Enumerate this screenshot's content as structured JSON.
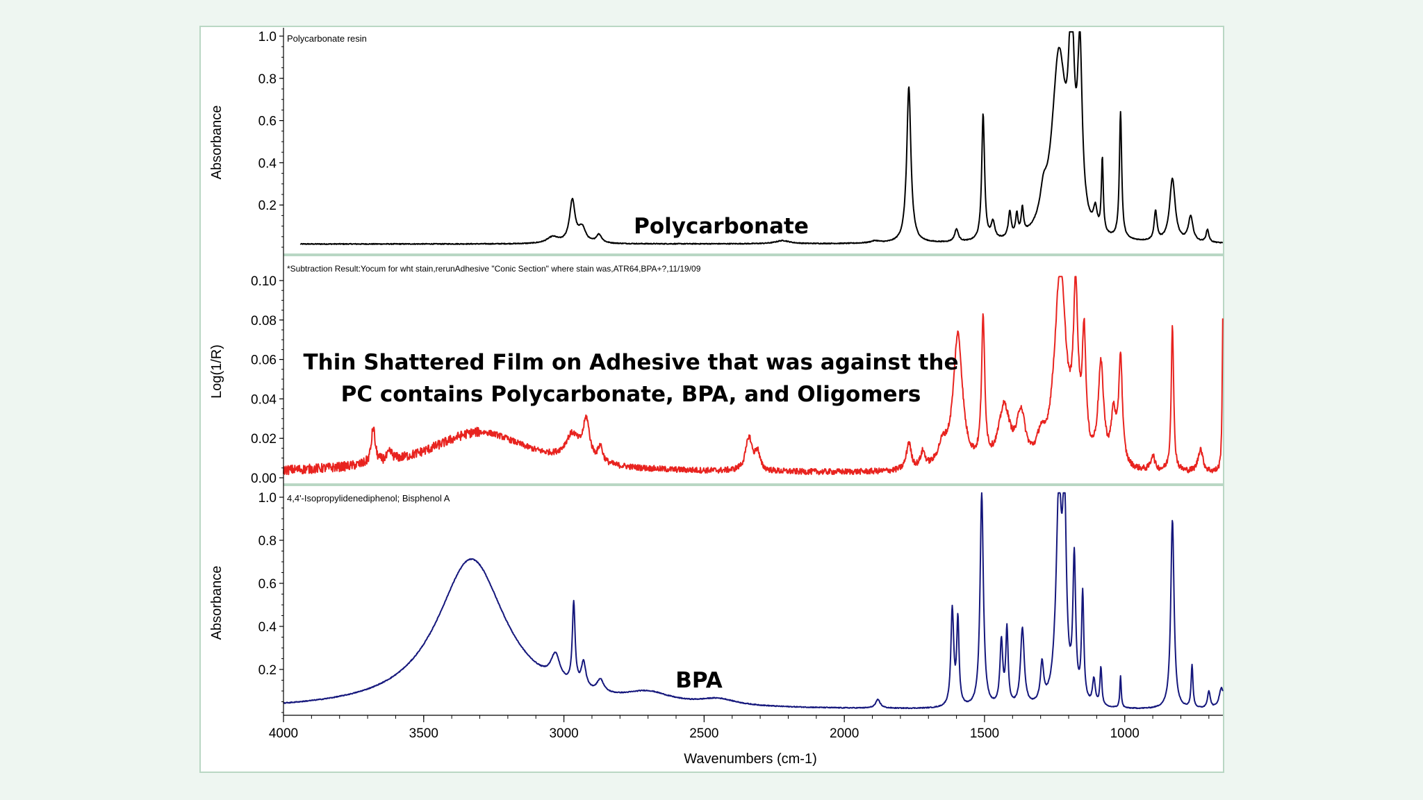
{
  "colors": {
    "background": "#eef6f1",
    "panel": "#ffffff",
    "divider": "#b9d7c4",
    "polycarbonate": "#000000",
    "subtraction": "#e8231f",
    "bpa": "#15177c"
  },
  "x_axis": {
    "label": "Wavenumbers (cm-1)",
    "ticks": [
      "4000",
      "3500",
      "3000",
      "2500",
      "2000",
      "1500",
      "1000"
    ],
    "range": [
      4000,
      650
    ],
    "reversed": true
  },
  "chart_data": [
    {
      "type": "line",
      "panel": "top",
      "title": "Polycarbonate resin",
      "annotation": "Polycarbonate",
      "ylabel": "Absorbance",
      "yticks": [
        "1.0",
        "0.8",
        "0.6",
        "0.4",
        "0.2"
      ],
      "ylim": [
        0.0,
        1.0
      ],
      "baseline": 0.015,
      "noise": 0.002,
      "peaks": [
        [
          3040,
          0.03,
          25
        ],
        [
          2970,
          0.2,
          12
        ],
        [
          2935,
          0.07,
          15
        ],
        [
          2875,
          0.04,
          12
        ],
        [
          2220,
          0.015,
          30
        ],
        [
          1890,
          0.01,
          20
        ],
        [
          1770,
          0.74,
          9
        ],
        [
          1600,
          0.06,
          8
        ],
        [
          1505,
          0.6,
          6
        ],
        [
          1470,
          0.08,
          8
        ],
        [
          1410,
          0.12,
          6
        ],
        [
          1385,
          0.1,
          5
        ],
        [
          1365,
          0.12,
          5
        ],
        [
          1290,
          0.12,
          15
        ],
        [
          1235,
          0.85,
          30
        ],
        [
          1190,
          0.85,
          12
        ],
        [
          1160,
          0.78,
          10
        ],
        [
          1105,
          0.1,
          8
        ],
        [
          1080,
          0.35,
          4
        ],
        [
          1015,
          0.6,
          5
        ],
        [
          890,
          0.14,
          6
        ],
        [
          830,
          0.3,
          12
        ],
        [
          765,
          0.12,
          10
        ],
        [
          705,
          0.06,
          6
        ]
      ]
    },
    {
      "type": "line",
      "panel": "middle",
      "title": "*Subtraction Result:Yocum for wht stain,rerunAdhesive \"Conic Section\" where stain was,ATR64,BPA+?,11/19/09",
      "annotation_lines": [
        "Thin Shattered Film on Adhesive that was against the",
        "PC contains Polycarbonate, BPA, and Oligomers"
      ],
      "ylabel": "Log(1/R)",
      "yticks": [
        "0.10",
        "0.08",
        "0.06",
        "0.04",
        "0.02",
        "0.00"
      ],
      "ylim": [
        0.0,
        0.1
      ],
      "baseline": 0.002,
      "noise": 0.0015,
      "peaks": [
        [
          3300,
          0.021,
          220
        ],
        [
          3680,
          0.018,
          8
        ],
        [
          3620,
          0.004,
          12
        ],
        [
          2970,
          0.013,
          30
        ],
        [
          2920,
          0.02,
          14
        ],
        [
          2870,
          0.008,
          10
        ],
        [
          2340,
          0.017,
          14
        ],
        [
          2310,
          0.009,
          10
        ],
        [
          1770,
          0.014,
          10
        ],
        [
          1720,
          0.008,
          10
        ],
        [
          1650,
          0.01,
          20
        ],
        [
          1595,
          0.068,
          20
        ],
        [
          1505,
          0.072,
          7
        ],
        [
          1430,
          0.03,
          25
        ],
        [
          1370,
          0.025,
          18
        ],
        [
          1300,
          0.01,
          15
        ],
        [
          1230,
          0.1,
          25
        ],
        [
          1175,
          0.078,
          10
        ],
        [
          1145,
          0.06,
          8
        ],
        [
          1085,
          0.05,
          12
        ],
        [
          1015,
          0.055,
          8
        ],
        [
          1040,
          0.025,
          10
        ],
        [
          900,
          0.008,
          8
        ],
        [
          830,
          0.075,
          5
        ],
        [
          730,
          0.012,
          10
        ],
        [
          650,
          0.08,
          3
        ]
      ]
    },
    {
      "type": "line",
      "panel": "bottom",
      "title": "4,4'-Isopropylidenediphenol; Bisphenol A",
      "annotation": "BPA",
      "ylabel": "Absorbance",
      "yticks": [
        "1.0",
        "0.8",
        "0.6",
        "0.4",
        "0.2"
      ],
      "ylim": [
        0.0,
        1.0
      ],
      "baseline": 0.01,
      "noise": 0.002,
      "peaks": [
        [
          3330,
          0.7,
          150
        ],
        [
          3030,
          0.12,
          20
        ],
        [
          2965,
          0.38,
          6
        ],
        [
          2930,
          0.12,
          10
        ],
        [
          2870,
          0.06,
          15
        ],
        [
          2700,
          0.05,
          100
        ],
        [
          2450,
          0.03,
          80
        ],
        [
          1880,
          0.04,
          10
        ],
        [
          1615,
          0.45,
          6
        ],
        [
          1595,
          0.4,
          5
        ],
        [
          1510,
          1.0,
          7
        ],
        [
          1440,
          0.3,
          6
        ],
        [
          1420,
          0.35,
          5
        ],
        [
          1365,
          0.36,
          8
        ],
        [
          1295,
          0.18,
          7
        ],
        [
          1235,
          0.95,
          12
        ],
        [
          1215,
          0.85,
          8
        ],
        [
          1180,
          0.65,
          6
        ],
        [
          1150,
          0.5,
          5
        ],
        [
          1110,
          0.12,
          6
        ],
        [
          1085,
          0.18,
          4
        ],
        [
          1015,
          0.15,
          3
        ],
        [
          830,
          0.88,
          7
        ],
        [
          760,
          0.2,
          4
        ],
        [
          700,
          0.08,
          6
        ],
        [
          655,
          0.1,
          10
        ]
      ]
    }
  ]
}
